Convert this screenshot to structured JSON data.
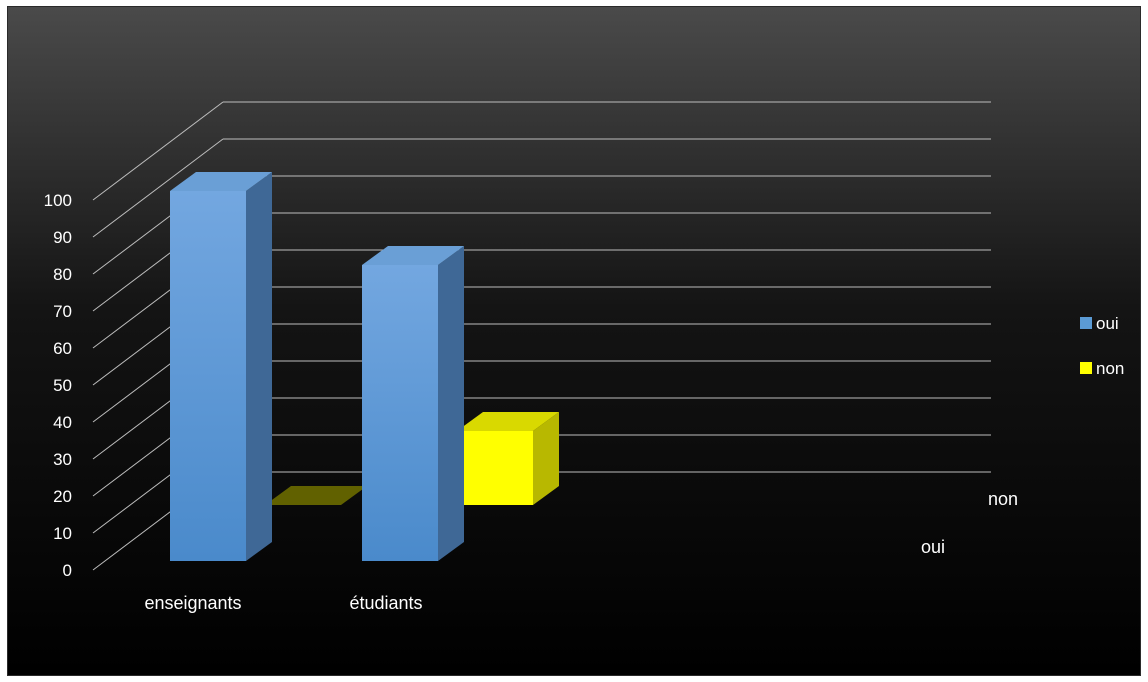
{
  "chart_data": {
    "type": "bar",
    "subtype": "3d-clustered-column",
    "categories": [
      "enseignants",
      "étudiants"
    ],
    "series": [
      {
        "name": "oui",
        "values": [
          100,
          80
        ],
        "color": "#5b9bd5"
      },
      {
        "name": "non",
        "values": [
          0,
          20
        ],
        "color": "#ffff00"
      }
    ],
    "ylim": [
      0,
      100
    ],
    "y_ticks": [
      "0",
      "10",
      "20",
      "30",
      "40",
      "50",
      "60",
      "70",
      "80",
      "90",
      "100"
    ],
    "depth_labels": [
      "non",
      "oui"
    ],
    "legend": {
      "position": "right",
      "entries": [
        "oui",
        "non"
      ]
    },
    "grid": true,
    "colors": {
      "background_top": "#4a4a4a",
      "background_bottom": "#000000",
      "gridline": "#bdbdbd",
      "text": "#ffffff"
    }
  }
}
